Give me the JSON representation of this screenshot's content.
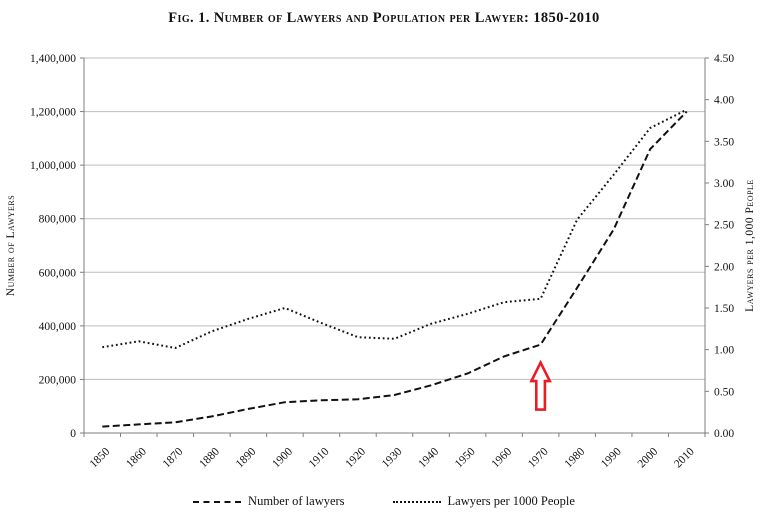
{
  "title": "Fig. 1. Number of Lawyers and Population per Lawyer: 1850-2010",
  "chart_data": {
    "type": "line",
    "title": "Fig. 1. Number of Lawyers and Population per Lawyer: 1850-2010",
    "categories": [
      "1850",
      "1860",
      "1870",
      "1880",
      "1890",
      "1900",
      "1910",
      "1920",
      "1930",
      "1940",
      "1950",
      "1960",
      "1970",
      "1980",
      "1990",
      "2000",
      "2010"
    ],
    "series": [
      {
        "name": "Number of lawyers",
        "axis": "left",
        "line_style": "dashed",
        "color": "#111111",
        "values": [
          24000,
          32000,
          40000,
          62000,
          90000,
          115000,
          122000,
          126000,
          142000,
          178000,
          222000,
          286000,
          330000,
          542000,
          760000,
          1060000,
          1200000
        ]
      },
      {
        "name": "Lawyers per 1000 People",
        "axis": "right",
        "line_style": "dotted",
        "color": "#111111",
        "values": [
          1.03,
          1.1,
          1.02,
          1.22,
          1.37,
          1.5,
          1.32,
          1.15,
          1.13,
          1.31,
          1.43,
          1.57,
          1.61,
          2.56,
          3.1,
          3.66,
          3.88
        ]
      }
    ],
    "left_axis": {
      "label": "Number of Lawyers",
      "min": 0,
      "max": 1400000,
      "tick_interval": 200000,
      "tick_labels": [
        "0",
        "200,000",
        "400,000",
        "600,000",
        "800,000",
        "1,000,000",
        "1,200,000",
        "1,400,000"
      ]
    },
    "right_axis": {
      "label": "Lawyers per 1,000 People",
      "min": 0,
      "max": 4.5,
      "tick_interval": 0.5,
      "tick_labels": [
        "0.00",
        "0.50",
        "1.00",
        "1.50",
        "2.00",
        "2.50",
        "3.00",
        "3.50",
        "4.00",
        "4.50"
      ]
    },
    "x_axis": {
      "label": "",
      "tick_rotation_deg": -45
    },
    "grid": "horizontal",
    "legend_position": "bottom",
    "annotation": {
      "type": "up-arrow",
      "color": "#ec1c24",
      "at_category": "1970",
      "target_series": "Number of lawyers"
    }
  },
  "legend": {
    "items": [
      {
        "label": "Number of lawyers",
        "style": "dashed"
      },
      {
        "label": "Lawyers per 1000 People",
        "style": "dotted"
      }
    ]
  },
  "colors": {
    "background": "#ffffff",
    "text": "#111111",
    "series": "#111111",
    "gridline": "#bdbdbd",
    "axis": "#7f7f7f",
    "annotation": "#ec1c24",
    "annotation_fill": "#ffffff"
  }
}
